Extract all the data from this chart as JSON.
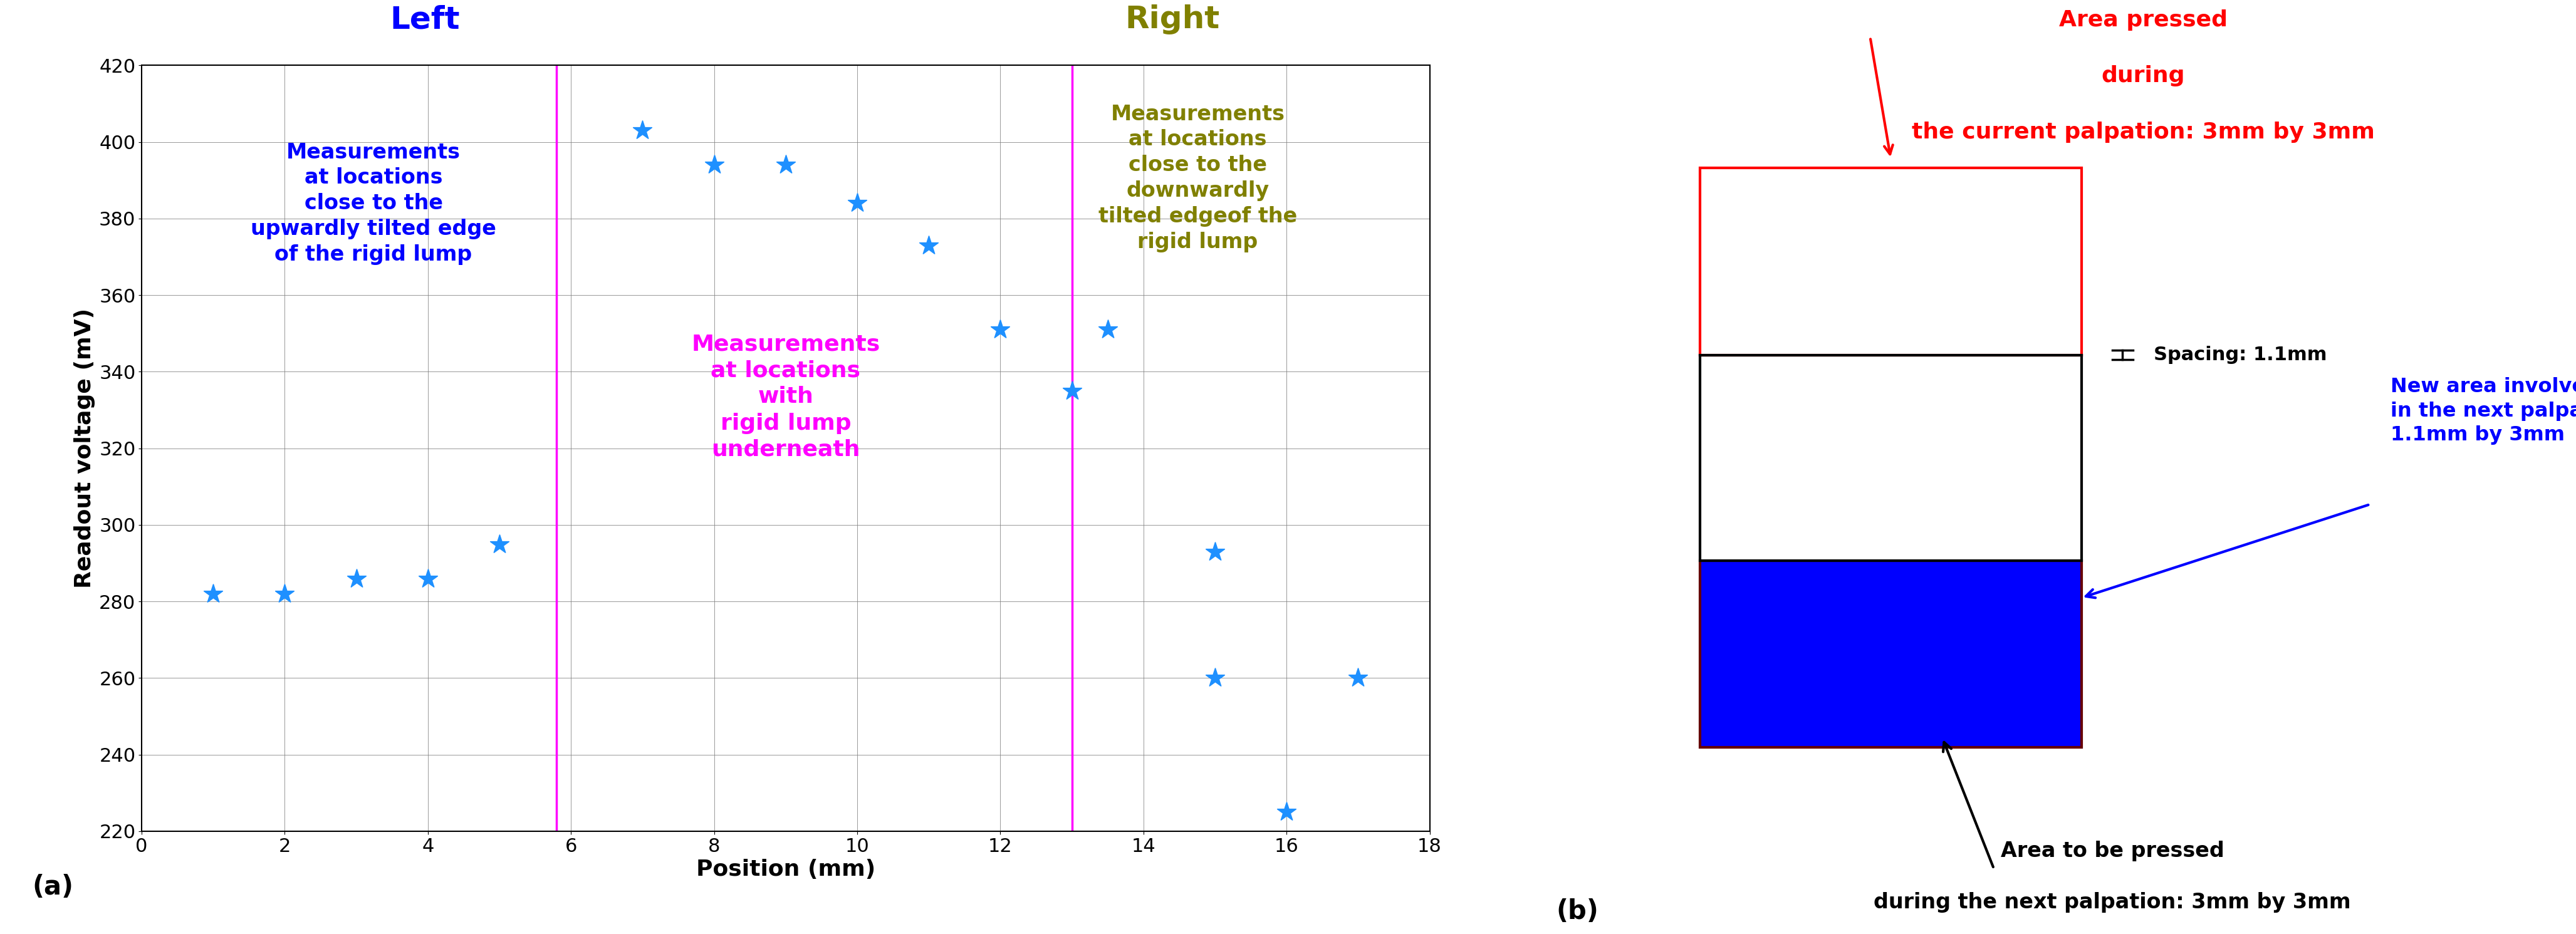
{
  "scatter_data": [
    [
      1,
      282
    ],
    [
      2,
      282
    ],
    [
      3,
      286
    ],
    [
      4,
      286
    ],
    [
      5,
      295
    ],
    [
      7,
      403
    ],
    [
      8,
      394
    ],
    [
      9,
      394
    ],
    [
      10,
      384
    ],
    [
      11,
      373
    ],
    [
      12,
      351
    ],
    [
      13,
      335
    ],
    [
      13.5,
      351
    ],
    [
      15,
      293
    ],
    [
      15,
      260
    ],
    [
      16,
      225
    ],
    [
      17,
      260
    ]
  ],
  "scatter_color": "#1E90FF",
  "vline1_x": 5.8,
  "vline2_x": 13.0,
  "vline_color": "#FF00FF",
  "xlabel": "Position (mm)",
  "ylabel": "Readout voltage (mV)",
  "xlim": [
    0,
    18
  ],
  "ylim": [
    220,
    420
  ],
  "xticks": [
    0,
    2,
    4,
    6,
    8,
    10,
    12,
    14,
    16,
    18
  ],
  "yticks": [
    220,
    240,
    260,
    280,
    300,
    320,
    340,
    360,
    380,
    400,
    420
  ],
  "label_left_title": "Left",
  "label_left_color": "#0000FF",
  "label_left_text": "Measurements\nat locations\nclose to the\nupwardly tilted edge\nof the rigid lump",
  "label_right_title": "Right",
  "label_right_color": "#808000",
  "label_right_text": "Measurements\nat locations\nclose to the\ndownwardly\ntilted edgeof the\nrigid lump",
  "label_middle_text": "Measurements\nat locations\nwith\nrigid lump\nunderneath",
  "label_middle_color": "#FF00FF",
  "panel_a_label": "(a)",
  "panel_b_label": "(b)",
  "fig_width": 41.11,
  "fig_height": 14.91
}
